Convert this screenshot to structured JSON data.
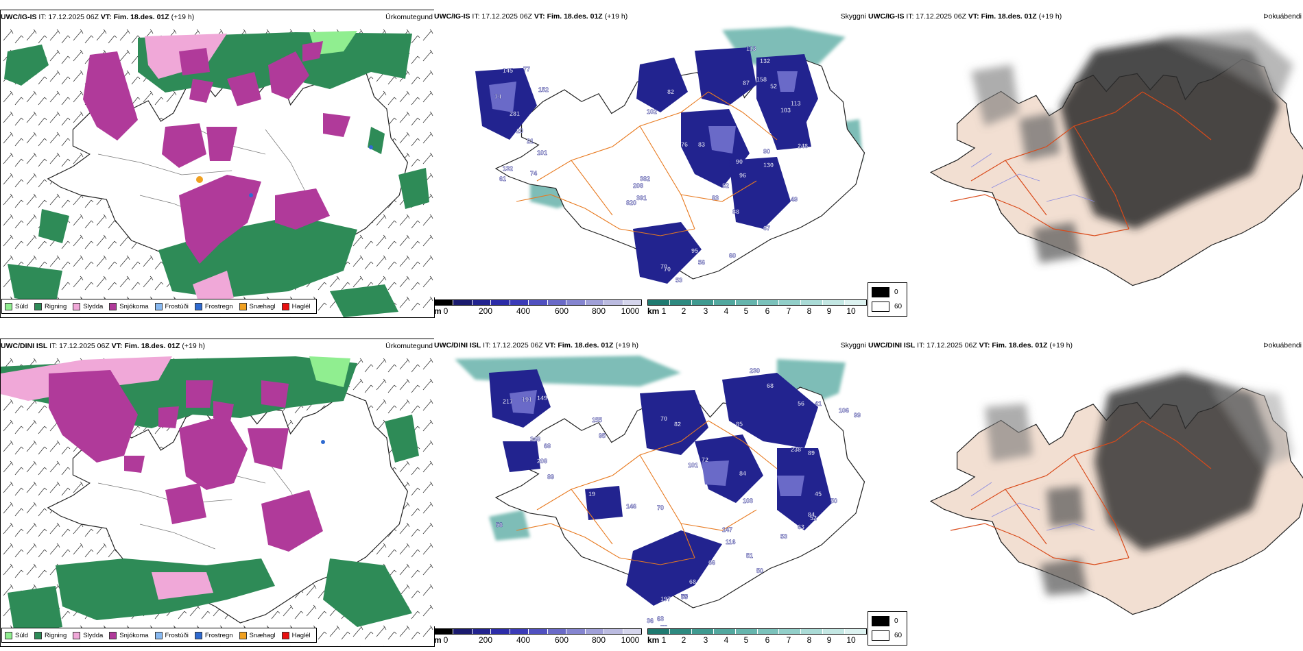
{
  "rows": [
    {
      "model": "UWC/IG-IS",
      "it": "IT: 17.12.2025 06Z",
      "vt": "VT: Fim. 18.des. 01Z",
      "lead": "(+19 h)"
    },
    {
      "model": "UWC/DINI ISL",
      "it": "IT: 17.12.2025 06Z",
      "vt": "VT: Fim. 18.des. 01Z",
      "lead": "(+19 h)"
    }
  ],
  "fields": {
    "precip": "Úrkomutegund",
    "cloud": "Skyggni",
    "fog": "Þokuábendi"
  },
  "precip_legend": [
    {
      "label": "Súld",
      "color": "#90ee90"
    },
    {
      "label": "Rigning",
      "color": "#2e8b57"
    },
    {
      "label": "Slydda",
      "color": "#f0a8d8"
    },
    {
      "label": "Snjókoma",
      "color": "#b03a9a"
    },
    {
      "label": "Frostúði",
      "color": "#87b8f0"
    },
    {
      "label": "Frostregn",
      "color": "#2f6ad0"
    },
    {
      "label": "Snæhagl",
      "color": "#f0a020"
    },
    {
      "label": "Haglél",
      "color": "#e81010"
    }
  ],
  "ceiling_bar": {
    "unit": "m",
    "ticks": [
      "0",
      "200",
      "400",
      "600",
      "800",
      "1000"
    ],
    "colors": [
      "#000000",
      "#1a1a6e",
      "#22238f",
      "#2c2ca8",
      "#3b3bb8",
      "#5050c0",
      "#6a6ac8",
      "#8585d0",
      "#a0a0d8",
      "#bbbbe0",
      "#d5d5ec"
    ]
  },
  "vis_bar": {
    "unit": "km",
    "ticks": [
      "1",
      "2",
      "3",
      "4",
      "5",
      "6",
      "7",
      "8",
      "9",
      "10"
    ],
    "colors": [
      "#1f7a70",
      "#2e8a80",
      "#3f9a90",
      "#52a89f",
      "#66b5ad",
      "#7bc2bb",
      "#92cfc9",
      "#aadbd6",
      "#c3e7e3",
      "#dcf2f0"
    ]
  },
  "fog_legend": {
    "high": "0",
    "low": "60"
  },
  "labels_ig": [
    "113",
    "132",
    "145",
    "77",
    "152",
    "74",
    "281",
    "20",
    "21",
    "101",
    "132",
    "102",
    "82",
    "76",
    "90",
    "87",
    "52",
    "103",
    "113",
    "158",
    "83",
    "90",
    "96",
    "52",
    "83",
    "88",
    "49",
    "67",
    "95",
    "56",
    "60",
    "70",
    "53",
    "70",
    "208",
    "382",
    "391",
    "820",
    "74",
    "61",
    "130",
    "248"
  ],
  "labels_dini": [
    "230",
    "68",
    "56",
    "41",
    "106",
    "99",
    "217",
    "191",
    "149",
    "348",
    "68",
    "208",
    "89",
    "155",
    "95",
    "70",
    "82",
    "101",
    "72",
    "85",
    "238",
    "89",
    "103",
    "84",
    "146",
    "70",
    "147",
    "116",
    "51",
    "66",
    "68",
    "79",
    "55",
    "197",
    "63",
    "75",
    "36",
    "50",
    "53",
    "63",
    "45",
    "52",
    "50",
    "84",
    "19",
    "56"
  ]
}
